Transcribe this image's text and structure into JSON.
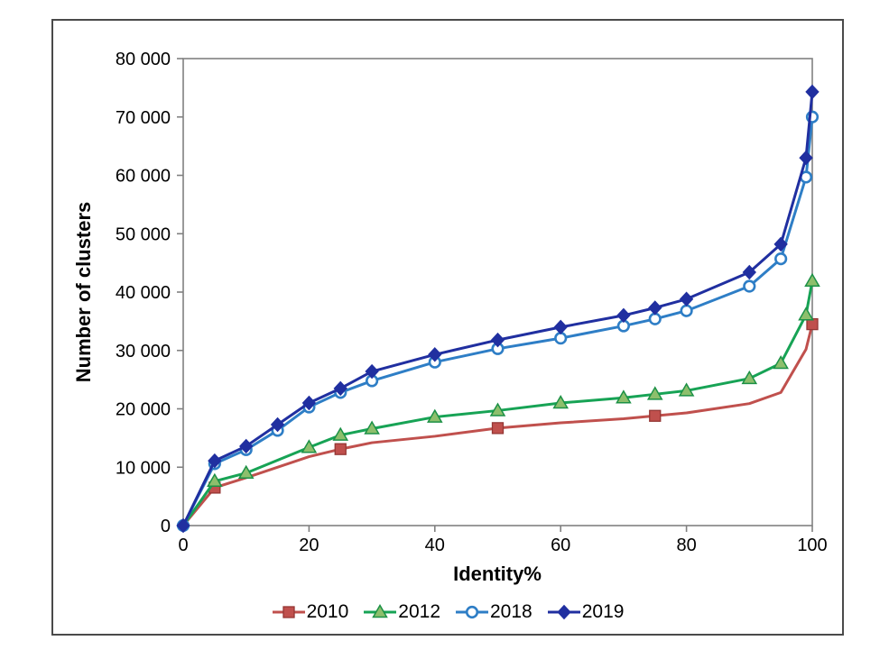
{
  "figure": {
    "background": "#ffffff",
    "border_color": "#4a4a4a",
    "frame_color": "#808080",
    "text_color": "#000000"
  },
  "chart_data": {
    "type": "line",
    "title": "",
    "xlabel": "Identity%",
    "ylabel": "Number of clusters",
    "xlim": [
      0,
      100
    ],
    "ylim": [
      0,
      80000
    ],
    "grid": false,
    "legend_position": "bottom",
    "x_ticks": [
      0,
      20,
      40,
      60,
      80,
      100
    ],
    "x_tick_labels": [
      "0",
      "20",
      "40",
      "60",
      "80",
      "100"
    ],
    "y_ticks": [
      0,
      10000,
      20000,
      30000,
      40000,
      50000,
      60000,
      70000,
      80000
    ],
    "y_tick_labels": [
      "0",
      "10 000",
      "20 000",
      "30 000",
      "40 000",
      "50 000",
      "60 000",
      "70 000",
      "80 000"
    ],
    "series": [
      {
        "name": "2010",
        "color": "#c0504d",
        "marker": "square",
        "marker_fill": "#c0504d",
        "marker_stroke": "#943634",
        "x": [
          0,
          5,
          10,
          20,
          25,
          30,
          40,
          50,
          60,
          70,
          75,
          80,
          90,
          95,
          99,
          100
        ],
        "values": [
          0,
          6500,
          8200,
          11800,
          13100,
          14200,
          15300,
          16700,
          17600,
          18300,
          18800,
          19300,
          20900,
          22800,
          30200,
          34500
        ],
        "marker_x": [
          5,
          25,
          50,
          75,
          100
        ]
      },
      {
        "name": "2012",
        "color": "#17a355",
        "marker": "triangle",
        "marker_fill": "#8dbf6c",
        "marker_stroke": "#1c9146",
        "x": [
          0,
          5,
          10,
          20,
          25,
          30,
          40,
          50,
          60,
          70,
          75,
          80,
          90,
          95,
          99,
          100
        ],
        "values": [
          0,
          7600,
          9000,
          13400,
          15500,
          16600,
          18600,
          19700,
          21000,
          21900,
          22500,
          23100,
          25200,
          27800,
          36100,
          41900
        ],
        "marker_x": [
          5,
          10,
          20,
          25,
          30,
          40,
          50,
          60,
          70,
          75,
          80,
          90,
          95,
          99,
          100
        ]
      },
      {
        "name": "2018",
        "color": "#2e7ec6",
        "marker": "circle",
        "marker_fill": "#ffffff",
        "marker_stroke": "#2e7ec6",
        "x": [
          0,
          5,
          10,
          15,
          20,
          25,
          30,
          40,
          50,
          60,
          70,
          75,
          80,
          90,
          95,
          99,
          100
        ],
        "values": [
          0,
          10600,
          13000,
          16300,
          20300,
          22800,
          24800,
          28000,
          30300,
          32100,
          34200,
          35400,
          36800,
          41000,
          45700,
          59700,
          70000
        ],
        "marker_x": [
          0,
          5,
          10,
          15,
          20,
          25,
          30,
          40,
          50,
          60,
          70,
          75,
          80,
          90,
          95,
          99,
          100
        ]
      },
      {
        "name": "2019",
        "color": "#202fa0",
        "marker": "diamond",
        "marker_fill": "#202fa0",
        "marker_stroke": "#202fa0",
        "x": [
          0,
          5,
          10,
          15,
          20,
          25,
          30,
          40,
          50,
          60,
          70,
          75,
          80,
          90,
          95,
          99,
          100
        ],
        "values": [
          0,
          11100,
          13600,
          17300,
          21000,
          23500,
          26400,
          29300,
          31800,
          34000,
          36000,
          37300,
          38800,
          43400,
          48200,
          63000,
          74300
        ],
        "marker_x": [
          0,
          5,
          10,
          15,
          20,
          25,
          30,
          40,
          50,
          60,
          70,
          75,
          80,
          90,
          95,
          99,
          100
        ]
      }
    ]
  }
}
